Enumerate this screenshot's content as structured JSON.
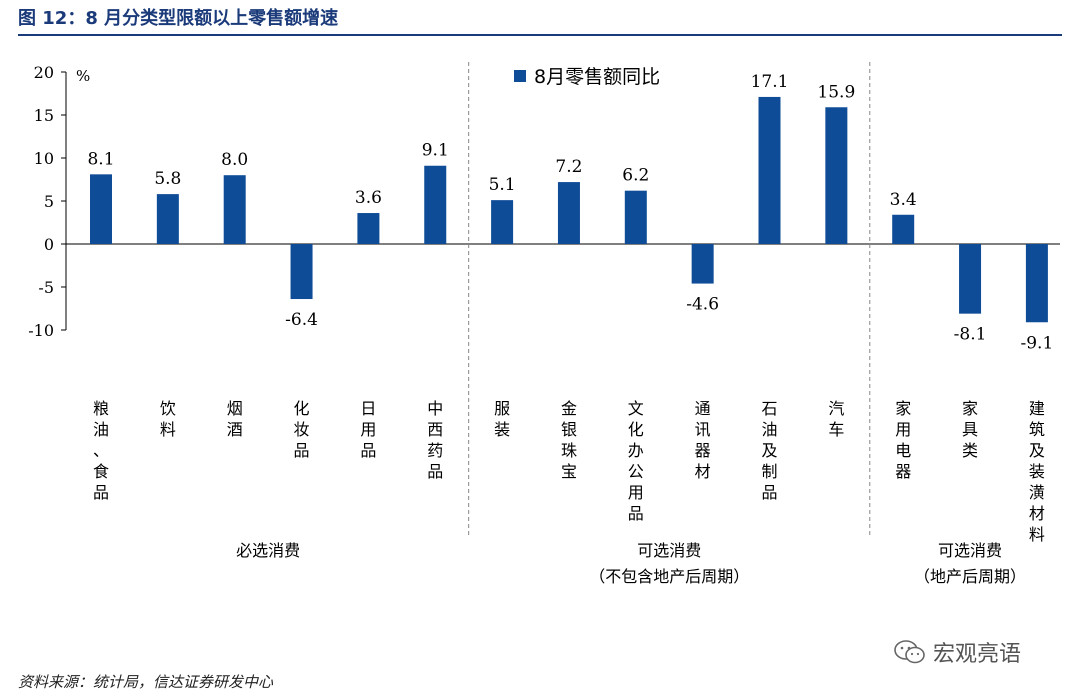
{
  "title": "图 12：8 月分类型限额以上零售额增速",
  "source": "资料来源：统计局，信达证券研发中心",
  "watermark": "宏观亮语",
  "colors": {
    "bar": "#0f4c97",
    "axis": "#000000",
    "divider": "#888888",
    "title": "#1a3a7a"
  },
  "chart_data": {
    "type": "bar",
    "title": "8月分类型限额以上零售额增速",
    "unit": "%",
    "legend": "8月零售额同比",
    "legend_position": "top-center",
    "ylim": [
      -10,
      20
    ],
    "yticks": [
      20,
      15,
      10,
      5,
      0,
      -5,
      -10
    ],
    "ytick_labels": [
      "20",
      "15",
      "10",
      "5",
      "0",
      "-5",
      "-10"
    ],
    "categories": [
      "粮油、食品",
      "饮料",
      "烟酒",
      "化妆品",
      "日用品",
      "中西药品",
      "服装",
      "金银珠宝",
      "文化办公用品",
      "通讯器材",
      "石油及制品",
      "汽车",
      "家用电器",
      "家具类",
      "建筑及装潢材料"
    ],
    "values": [
      8.1,
      5.8,
      8.0,
      -6.4,
      3.6,
      9.1,
      5.1,
      7.2,
      6.2,
      -4.6,
      17.1,
      15.9,
      3.4,
      -8.1,
      -9.1
    ],
    "value_labels": [
      "8.1",
      "5.8",
      "8.0",
      "-6.4",
      "3.6",
      "9.1",
      "5.1",
      "7.2",
      "6.2",
      "-4.6",
      "17.1",
      "15.9",
      "3.4",
      "-8.1",
      "-9.1"
    ],
    "groups": [
      {
        "lines": [
          "必选消费"
        ],
        "start": 0,
        "end": 5
      },
      {
        "lines": [
          "可选消费",
          "（不包含地产后周期）"
        ],
        "start": 6,
        "end": 11
      },
      {
        "lines": [
          "可选消费",
          "（地产后周期）"
        ],
        "start": 12,
        "end": 14
      }
    ]
  }
}
